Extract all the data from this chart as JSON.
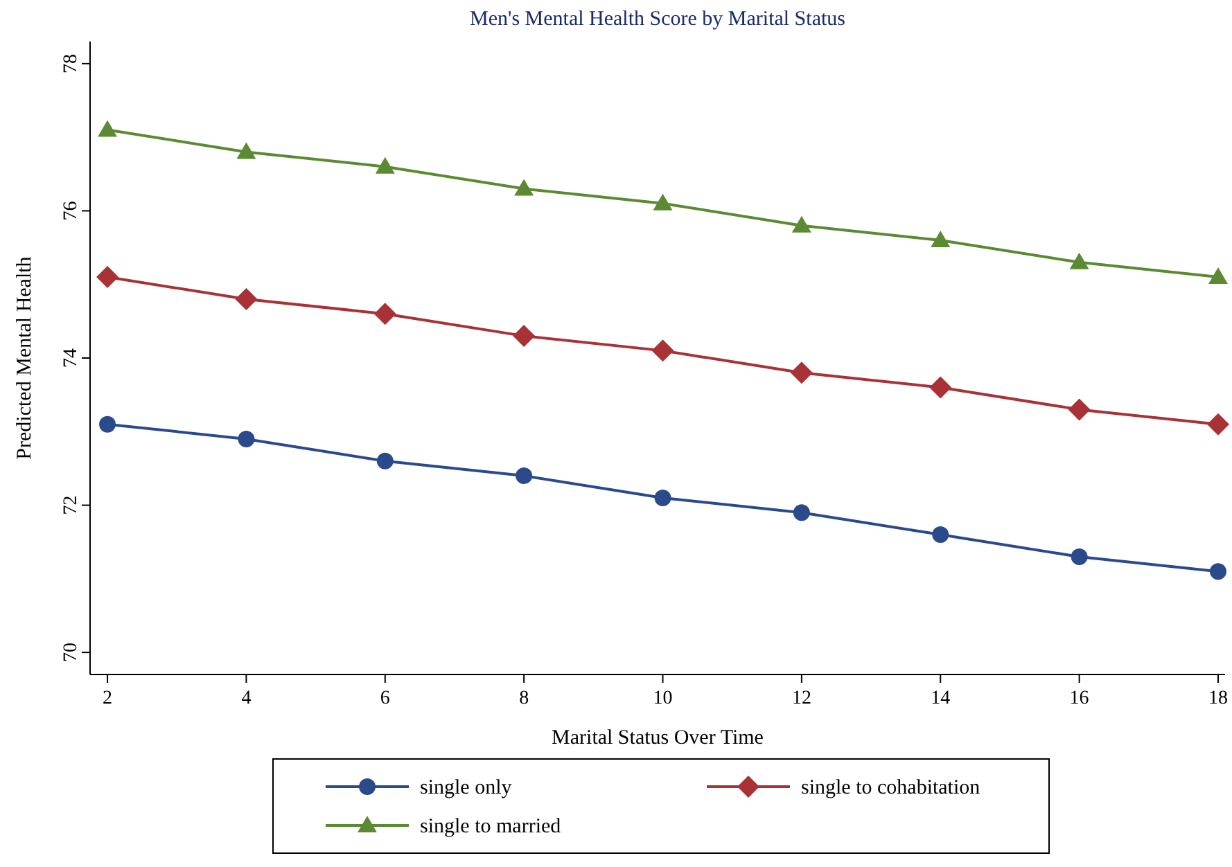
{
  "chart_data": {
    "type": "line",
    "title": "Men's Mental Health Score by Marital Status",
    "xlabel": "Marital Status Over Time",
    "ylabel": "Predicted Mental Health",
    "x": [
      2,
      4,
      6,
      8,
      10,
      12,
      14,
      16,
      18
    ],
    "series": [
      {
        "name": "single only",
        "color": "#2b4a8b",
        "marker": "circle",
        "values": [
          73.1,
          72.9,
          72.6,
          72.4,
          72.1,
          71.9,
          71.6,
          71.3,
          71.1
        ]
      },
      {
        "name": "single to cohabitation",
        "color": "#a83236",
        "marker": "diamond",
        "values": [
          75.1,
          74.8,
          74.6,
          74.3,
          74.1,
          73.8,
          73.6,
          73.3,
          73.1
        ]
      },
      {
        "name": "single to married",
        "color": "#5b8a33",
        "marker": "triangle",
        "values": [
          77.1,
          76.8,
          76.6,
          76.3,
          76.1,
          75.8,
          75.6,
          75.3,
          75.1
        ]
      }
    ],
    "xlim": [
      1.75,
      18.1
    ],
    "ylim": [
      69.7,
      78.3
    ],
    "xticks": [
      2,
      4,
      6,
      8,
      10,
      12,
      14,
      16,
      18
    ],
    "yticks": [
      70,
      72,
      74,
      76,
      78
    ],
    "grid": false,
    "legend": "bottom",
    "line_style": "solid"
  }
}
